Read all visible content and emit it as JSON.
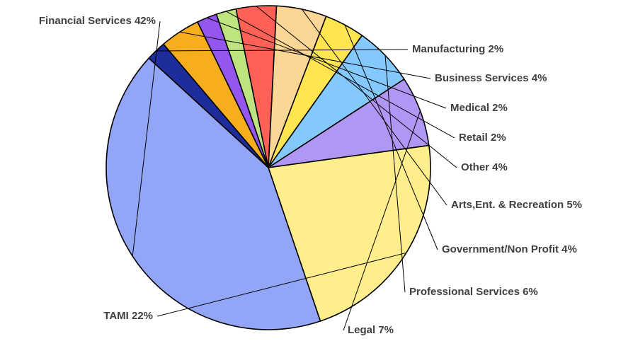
{
  "chart_data": {
    "type": "pie",
    "title": "",
    "slices": [
      {
        "label": "Manufacturing 2%",
        "name": "Manufacturing",
        "value": 2,
        "color": "#1f2c9c"
      },
      {
        "label": "Business Services 4%",
        "name": "Business Services",
        "value": 4,
        "color": "#f7ae1e"
      },
      {
        "label": "Medical 2%",
        "name": "Medical",
        "value": 2,
        "color": "#9456ee"
      },
      {
        "label": "Retail 2%",
        "name": "Retail",
        "value": 2,
        "color": "#bde47f"
      },
      {
        "label": "Other 4%",
        "name": "Other",
        "value": 4,
        "color": "#ff6157"
      },
      {
        "label": "Arts,Ent. & Recreation 5%",
        "name": "Arts,Ent. & Recreation",
        "value": 5,
        "color": "#fcd695"
      },
      {
        "label": "Government/Non Profit 4%",
        "name": "Government/Non Profit",
        "value": 4,
        "color": "#ffe54f"
      },
      {
        "label": "Professional Services 6%",
        "name": "Professional Services",
        "value": 6,
        "color": "#84c9fd"
      },
      {
        "label": "Legal 7%",
        "name": "Legal",
        "value": 7,
        "color": "#b197f4"
      },
      {
        "label": "TAMI 22%",
        "name": "TAMI",
        "value": 22,
        "color": "#ffee8c"
      },
      {
        "label": "Financial Services 42%",
        "name": "Financial Services",
        "value": 42,
        "color": "#93a5f7"
      }
    ]
  }
}
